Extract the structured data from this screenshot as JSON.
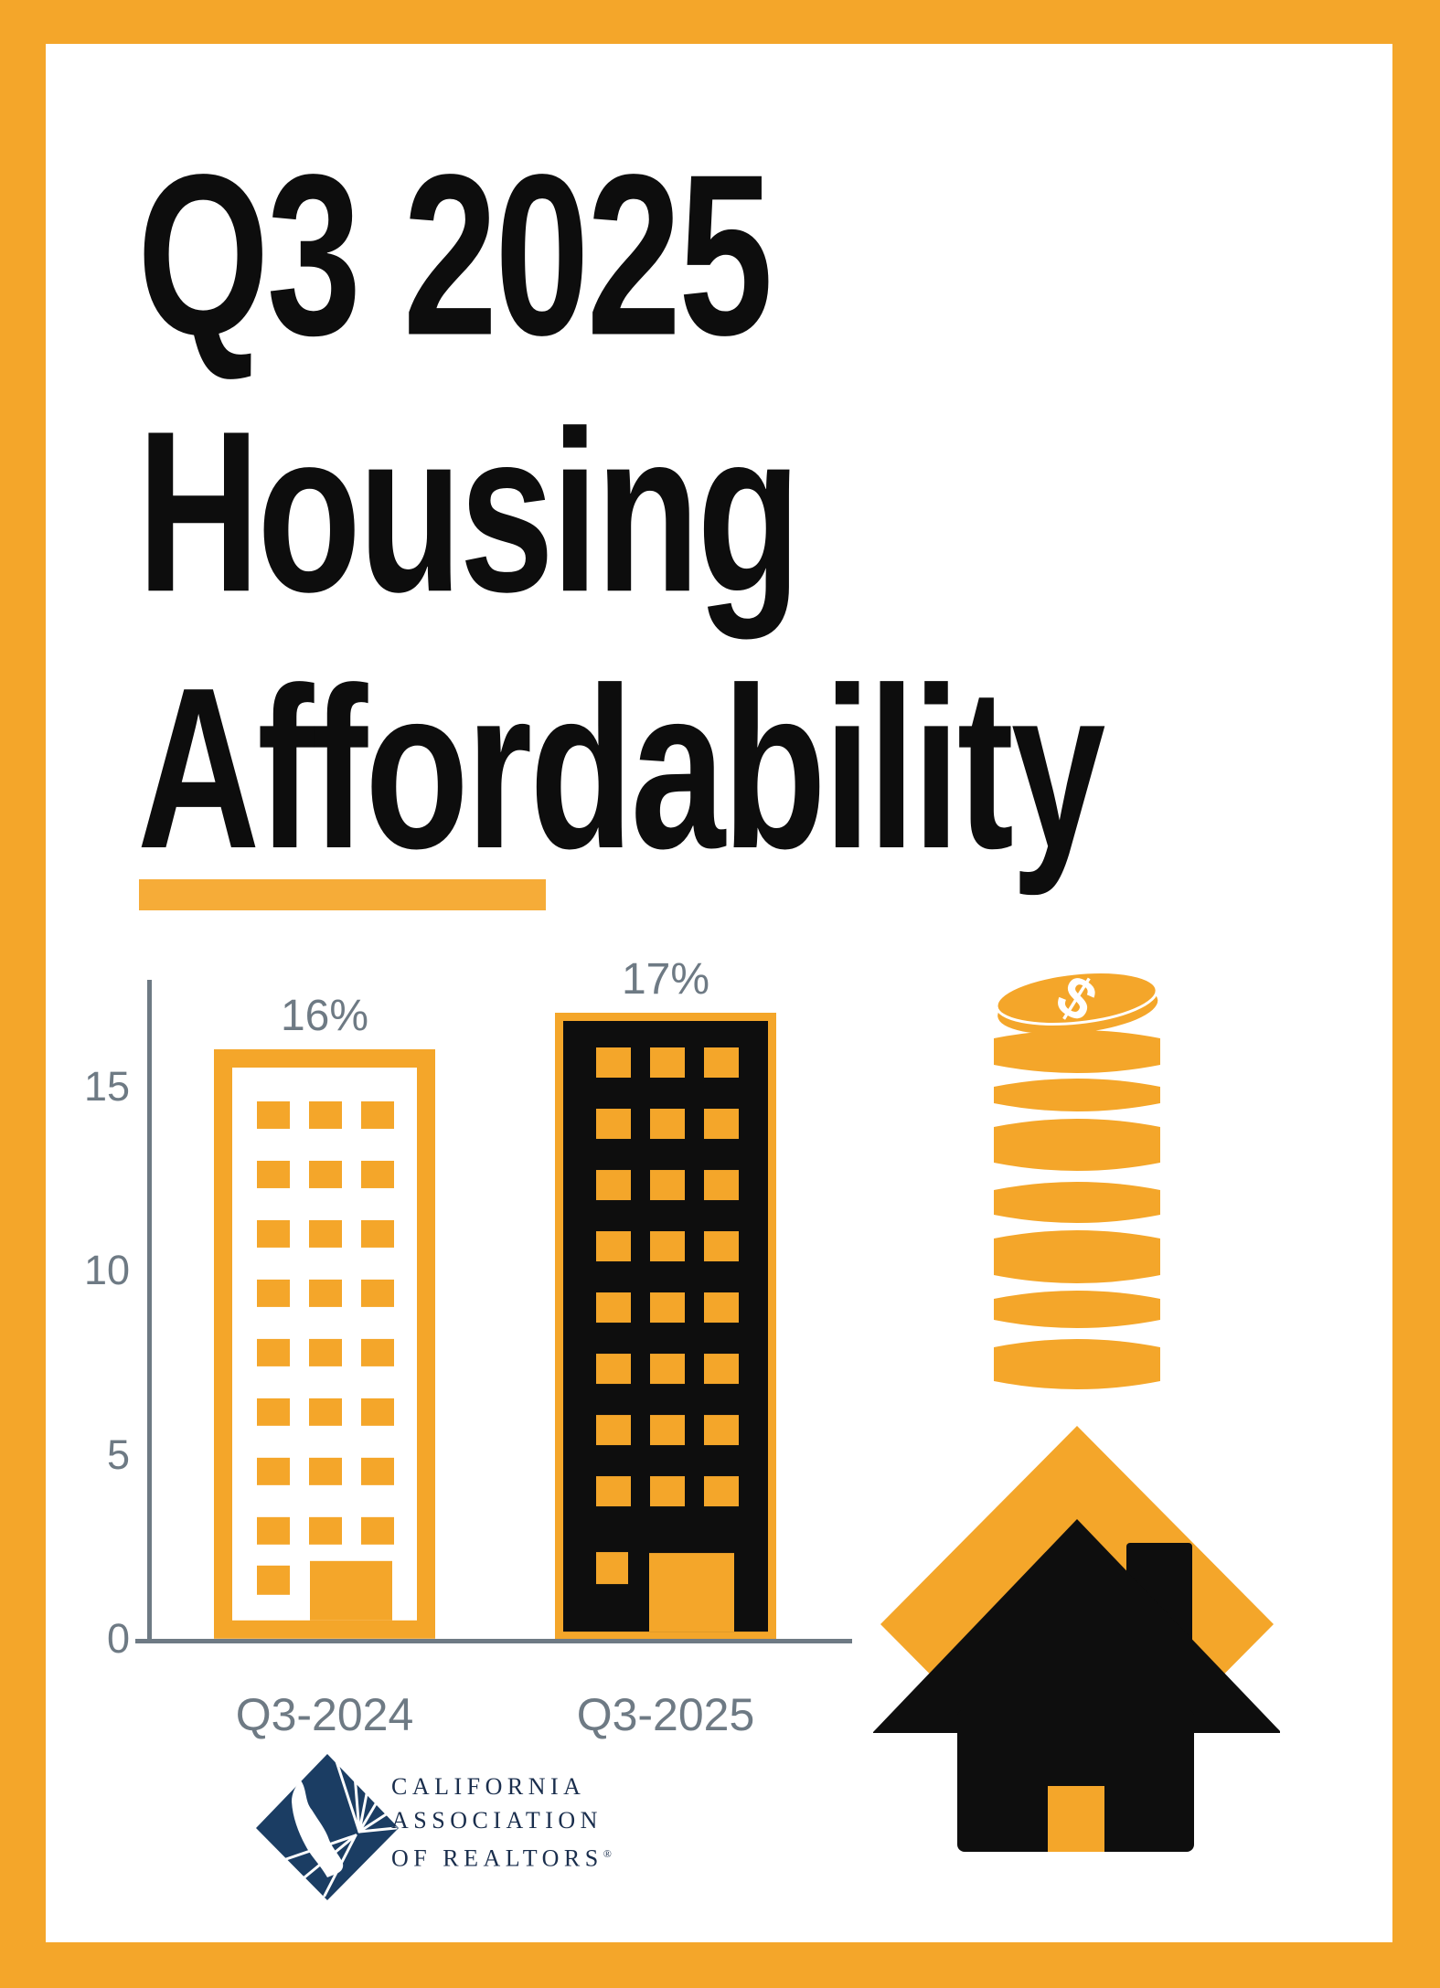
{
  "header": {
    "title_lines": [
      "Q3 2025",
      "Housing",
      "Affordability"
    ]
  },
  "chart_data": {
    "type": "bar",
    "categories": [
      "Q3-2024",
      "Q3-2025"
    ],
    "values": [
      16,
      17
    ],
    "value_labels": [
      "16%",
      "17%"
    ],
    "unit": "%",
    "yticks": [
      0,
      5,
      10,
      15
    ],
    "ylim": [
      0,
      18
    ],
    "grid": false,
    "legend": false,
    "bar_pictogram": "building",
    "bar_colors": [
      "#FFFFFF outlined orange",
      "#0E0E0E filled black"
    ]
  },
  "icons": {
    "coin_dollar": "$"
  },
  "logo": {
    "lines": [
      "CALIFORNIA",
      "ASSOCIATION",
      "OF REALTORS"
    ],
    "registered": "®"
  },
  "colors": {
    "accent_orange": "#F4A62A",
    "ink_black": "#0D0D0D",
    "axis_gray": "#6E7A84",
    "logo_navy": "#1B3D63",
    "background": "#FFFFFF"
  }
}
